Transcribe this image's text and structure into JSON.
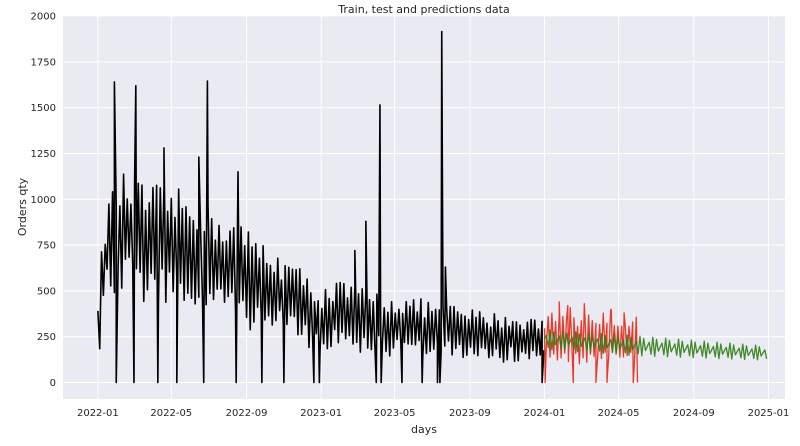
{
  "chart_data": {
    "type": "line",
    "title": "Train, test and predictions data",
    "xlabel": "days",
    "ylabel": "Orders qty",
    "x_ticks": [
      "2022-01",
      "2022-05",
      "2022-09",
      "2023-01",
      "2023-05",
      "2023-09",
      "2024-01",
      "2024-05",
      "2024-09",
      "2025-01"
    ],
    "y_ticks": [
      0,
      250,
      500,
      750,
      1000,
      1250,
      1500,
      1750,
      2000
    ],
    "xlim": [
      "2021-11-05",
      "2025-01-28"
    ],
    "ylim": [
      -90,
      2000
    ],
    "grid": true,
    "background": "#eaeaf2",
    "colors": {
      "train": "#000000",
      "test": "#e8392a",
      "predictions": "#2f7d14"
    },
    "series": [
      {
        "key": "train",
        "x_start": "2022-01-01",
        "x_end": "2023-12-31",
        "x_step_days": 3,
        "profile": [
          [
            "2022-01-01",
            300
          ],
          [
            "2022-01-15",
            720
          ],
          [
            "2022-02-15",
            820
          ],
          [
            "2022-03-15",
            760
          ],
          [
            "2022-05-01",
            740
          ],
          [
            "2022-06-15",
            690
          ],
          [
            "2022-08-01",
            620
          ],
          [
            "2022-10-01",
            520
          ],
          [
            "2022-12-01",
            420
          ],
          [
            "2022-12-31",
            330
          ],
          [
            "2023-02-01",
            370
          ],
          [
            "2023-04-01",
            320
          ],
          [
            "2023-06-01",
            300
          ],
          [
            "2023-08-01",
            280
          ],
          [
            "2023-10-01",
            250
          ],
          [
            "2023-12-31",
            230
          ]
        ],
        "amplitude": [
          [
            "2022-01-01",
            220
          ],
          [
            "2022-02-01",
            330
          ],
          [
            "2022-06-01",
            330
          ],
          [
            "2022-09-01",
            280
          ],
          [
            "2022-12-01",
            200
          ],
          [
            "2023-04-01",
            180
          ],
          [
            "2023-09-01",
            140
          ],
          [
            "2023-12-31",
            130
          ]
        ],
        "dips": [
          "2022-01-31",
          "2022-03-01",
          "2022-04-09",
          "2022-05-10",
          "2022-06-23",
          "2022-08-15",
          "2022-09-26",
          "2022-11-01",
          "2022-12-20",
          "2022-12-29",
          "2023-04-01",
          "2023-04-09",
          "2023-05-13",
          "2023-06-15",
          "2023-07-10",
          "2023-07-14",
          "2023-12-28"
        ],
        "spikes": [
          [
            "2022-01-28",
            1640
          ],
          [
            "2022-03-04",
            1620
          ],
          [
            "2022-04-19",
            1280
          ],
          [
            "2022-06-15",
            1230
          ],
          [
            "2022-06-29",
            1645
          ],
          [
            "2022-08-18",
            1150
          ],
          [
            "2023-02-25",
            720
          ],
          [
            "2023-03-15",
            880
          ],
          [
            "2023-04-07",
            1515
          ],
          [
            "2023-07-17",
            1915
          ],
          [
            "2023-07-23",
            630
          ]
        ]
      },
      {
        "key": "test",
        "x_start": "2024-01-01",
        "x_end": "2024-06-01",
        "x_step_days": 3,
        "profile": [
          [
            "2024-01-01",
            250
          ],
          [
            "2024-06-01",
            240
          ]
        ],
        "amplitude": [
          [
            "2024-01-01",
            120
          ],
          [
            "2024-02-15",
            170
          ],
          [
            "2024-06-01",
            140
          ]
        ],
        "dips": [
          "2024-01-02",
          "2024-02-17",
          "2024-03-25",
          "2024-04-12",
          "2024-05-25",
          "2024-06-01"
        ],
        "spikes": [
          [
            "2024-01-25",
            440
          ],
          [
            "2024-02-08",
            420
          ],
          [
            "2024-03-06",
            430
          ],
          [
            "2024-04-19",
            400
          ],
          [
            "2024-05-10",
            380
          ]
        ]
      },
      {
        "key": "predictions",
        "x_start": "2024-01-01",
        "x_end": "2024-12-31",
        "x_step_days": 3,
        "profile": [
          [
            "2024-01-01",
            235
          ],
          [
            "2024-06-01",
            200
          ],
          [
            "2024-12-31",
            160
          ]
        ],
        "amplitude": [
          [
            "2024-01-01",
            55
          ],
          [
            "2024-06-01",
            55
          ],
          [
            "2024-12-31",
            40
          ]
        ],
        "period_days": 7
      }
    ]
  }
}
